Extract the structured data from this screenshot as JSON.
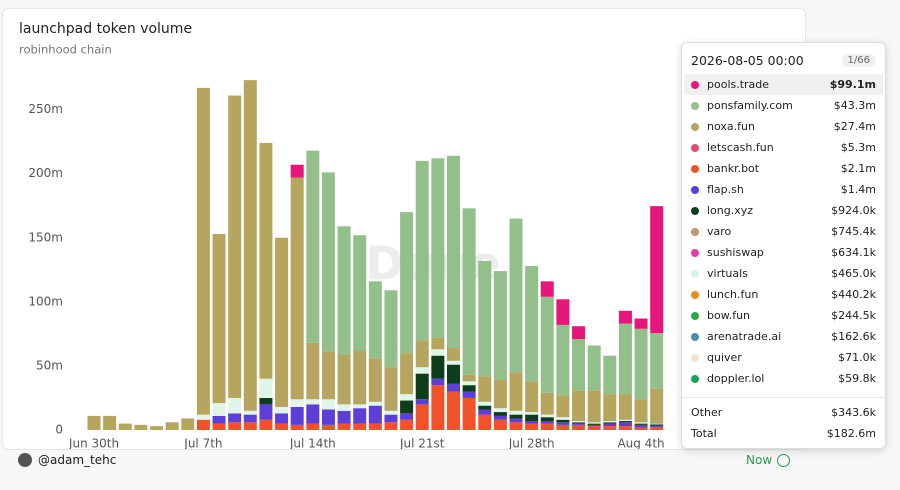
{
  "chart_data": {
    "type": "bar",
    "stacked": true,
    "title": "launchpad token volume",
    "subtitle": "robinhood chain",
    "watermark": "Dune",
    "categories": [
      "Jun 30th",
      null,
      null,
      null,
      null,
      null,
      null,
      "Jul 7th",
      null,
      null,
      null,
      null,
      null,
      null,
      "Jul 14th",
      null,
      null,
      null,
      null,
      null,
      null,
      "Jul 21st",
      null,
      null,
      null,
      null,
      null,
      null,
      "Jul 28th",
      null,
      null,
      null,
      null,
      null,
      null,
      "Aug 4th",
      null
    ],
    "ylim": [
      0,
      270
    ],
    "yticks": [
      0,
      {
        "value": 50,
        "label": "50m"
      },
      {
        "value": 100,
        "label": "100m"
      },
      {
        "value": 150,
        "label": "150m"
      },
      {
        "value": 200,
        "label": "200m"
      },
      {
        "value": 250,
        "label": "250m"
      }
    ],
    "grid": false,
    "series": [
      {
        "name": "bankr.bot",
        "color": "#f0522a",
        "values": [
          0,
          0,
          0,
          0,
          0,
          0,
          0,
          8,
          5,
          6,
          6,
          8,
          5,
          4,
          5,
          4,
          5,
          5,
          5,
          6,
          8,
          20,
          35,
          30,
          25,
          12,
          8,
          6,
          5,
          5,
          4,
          4,
          3,
          3,
          3,
          2,
          2.1
        ]
      },
      {
        "name": "flap.sh",
        "color": "#5b3fd6",
        "values": [
          0,
          0,
          0,
          0,
          0,
          0,
          0,
          0,
          6,
          7,
          6,
          12,
          8,
          14,
          15,
          12,
          10,
          12,
          14,
          6,
          5,
          4,
          5,
          6,
          5,
          4,
          3,
          3,
          2,
          2,
          2,
          1,
          1,
          2,
          3,
          2,
          1.4
        ]
      },
      {
        "name": "long.xyz",
        "color": "#0e3d1a",
        "values": [
          0,
          0,
          0,
          0,
          0,
          0,
          0,
          0,
          0,
          0,
          0,
          5,
          0,
          0,
          0,
          0,
          0,
          0,
          0,
          0,
          10,
          20,
          18,
          15,
          5,
          3,
          3,
          3,
          5,
          3,
          2,
          1,
          1,
          1,
          1,
          1,
          0.924
        ]
      },
      {
        "name": "virtuals",
        "color": "#dff5e8",
        "values": [
          0,
          0,
          0,
          0,
          0,
          0,
          0,
          4,
          10,
          12,
          3,
          15,
          5,
          6,
          4,
          8,
          5,
          3,
          3,
          3,
          5,
          5,
          5,
          3,
          3,
          3,
          3,
          3,
          2,
          2,
          2,
          1,
          1,
          1,
          1,
          1,
          0.465
        ]
      },
      {
        "name": "noxa.fun",
        "color": "#b5a55e",
        "values": [
          11,
          11,
          5,
          4,
          3,
          6,
          9,
          255,
          132,
          236,
          258,
          184,
          132,
          173,
          44,
          37,
          39,
          42,
          34,
          34,
          32,
          21,
          9,
          10,
          5,
          20,
          22,
          30,
          24,
          17,
          17,
          24,
          25,
          21,
          20,
          18,
          27.4
        ]
      },
      {
        "name": "ponsfamily.com",
        "color": "#93bf8b",
        "values": [
          0,
          0,
          0,
          0,
          0,
          0,
          0,
          0,
          0,
          0,
          0,
          0,
          0,
          0,
          150,
          140,
          100,
          90,
          60,
          60,
          110,
          140,
          140,
          150,
          130,
          90,
          85,
          120,
          90,
          75,
          55,
          40,
          35,
          30,
          55,
          55,
          43.3
        ]
      },
      {
        "name": "pools.trade",
        "color": "#e8157a",
        "values": [
          0,
          0,
          0,
          0,
          0,
          0,
          0,
          0,
          0,
          0,
          0,
          0,
          0,
          10,
          0,
          0,
          0,
          0,
          0,
          0,
          0,
          0,
          0,
          0,
          0,
          0,
          0,
          0,
          0,
          12,
          20,
          10,
          0,
          0,
          10,
          8,
          99.1
        ]
      }
    ]
  },
  "tooltip": {
    "date": "2026-08-05 00:00",
    "page": "1/66",
    "rows": [
      {
        "name": "pools.trade",
        "value": "$99.1m",
        "color": "#e8157a"
      },
      {
        "name": "ponsfamily.com",
        "value": "$43.3m",
        "color": "#93bf8b"
      },
      {
        "name": "noxa.fun",
        "value": "$27.4m",
        "color": "#b5a55e"
      },
      {
        "name": "letscash.fun",
        "value": "$5.3m",
        "color": "#e04b70"
      },
      {
        "name": "bankr.bot",
        "value": "$2.1m",
        "color": "#f0522a"
      },
      {
        "name": "flap.sh",
        "value": "$1.4m",
        "color": "#5b3fd6"
      },
      {
        "name": "long.xyz",
        "value": "$924.0k",
        "color": "#0e3d1a"
      },
      {
        "name": "varo",
        "value": "$745.4k",
        "color": "#c9956a"
      },
      {
        "name": "sushiswap",
        "value": "$634.1k",
        "color": "#e23fa6"
      },
      {
        "name": "virtuals",
        "value": "$465.0k",
        "color": "#d8f3e4"
      },
      {
        "name": "lunch.fun",
        "value": "$440.2k",
        "color": "#f08a1e"
      },
      {
        "name": "bow.fun",
        "value": "$244.5k",
        "color": "#2ca84a"
      },
      {
        "name": "arenatrade.ai",
        "value": "$162.6k",
        "color": "#4a8bb0"
      },
      {
        "name": "quiver",
        "value": "$71.0k",
        "color": "#f5e1d0"
      },
      {
        "name": "doppler.lol",
        "value": "$59.8k",
        "color": "#1aa05a"
      }
    ],
    "other": {
      "name": "Other",
      "value": "$343.6k"
    },
    "total": {
      "name": "Total",
      "value": "$182.6m"
    }
  },
  "footer": {
    "user": "@adam_tehc",
    "status": "Now"
  }
}
